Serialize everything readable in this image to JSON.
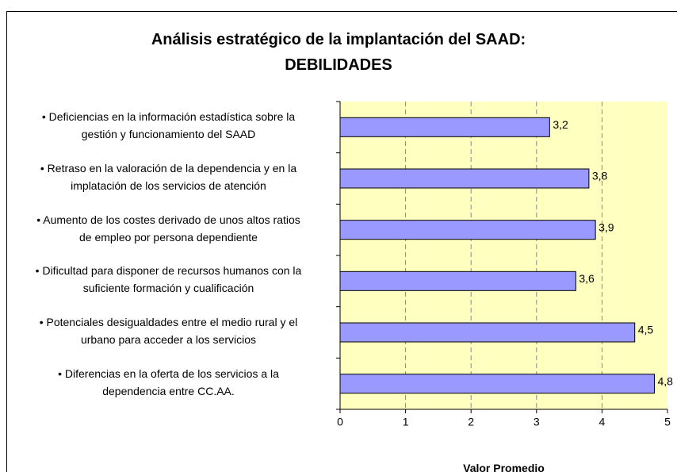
{
  "chart_data": {
    "type": "bar",
    "orientation": "horizontal",
    "title": "Análisis estratégico de la implantación del SAAD:\nDEBILIDADES",
    "categories": [
      "• Deficiencias en la información estadística sobre la\ngestión y funcionamiento del SAAD",
      "• Retraso en la valoración de la dependencia y en la\nimplatación de los servicios de atención",
      "• Aumento de los costes derivado de unos altos ratios\nde empleo por persona dependiente",
      "• Dificultad para disponer de recursos humanos con la\nsuficiente formación y cualificación",
      "• Potenciales desigualdades entre el medio rural y el\nurbano para acceder a los servicios",
      "• Diferencias en la oferta de los servicios a la\ndependencia entre CC.AA."
    ],
    "values": [
      3.2,
      3.8,
      3.9,
      3.6,
      4.5,
      4.8
    ],
    "value_labels": [
      "3,2",
      "3,8",
      "3,9",
      "3,6",
      "4,5",
      "4,8"
    ],
    "color": "#9999ff",
    "xlabel": "Valor Promedio",
    "xlim": [
      0,
      5
    ],
    "xticks": [
      0,
      1,
      2,
      3,
      4,
      5
    ],
    "grid": true
  }
}
